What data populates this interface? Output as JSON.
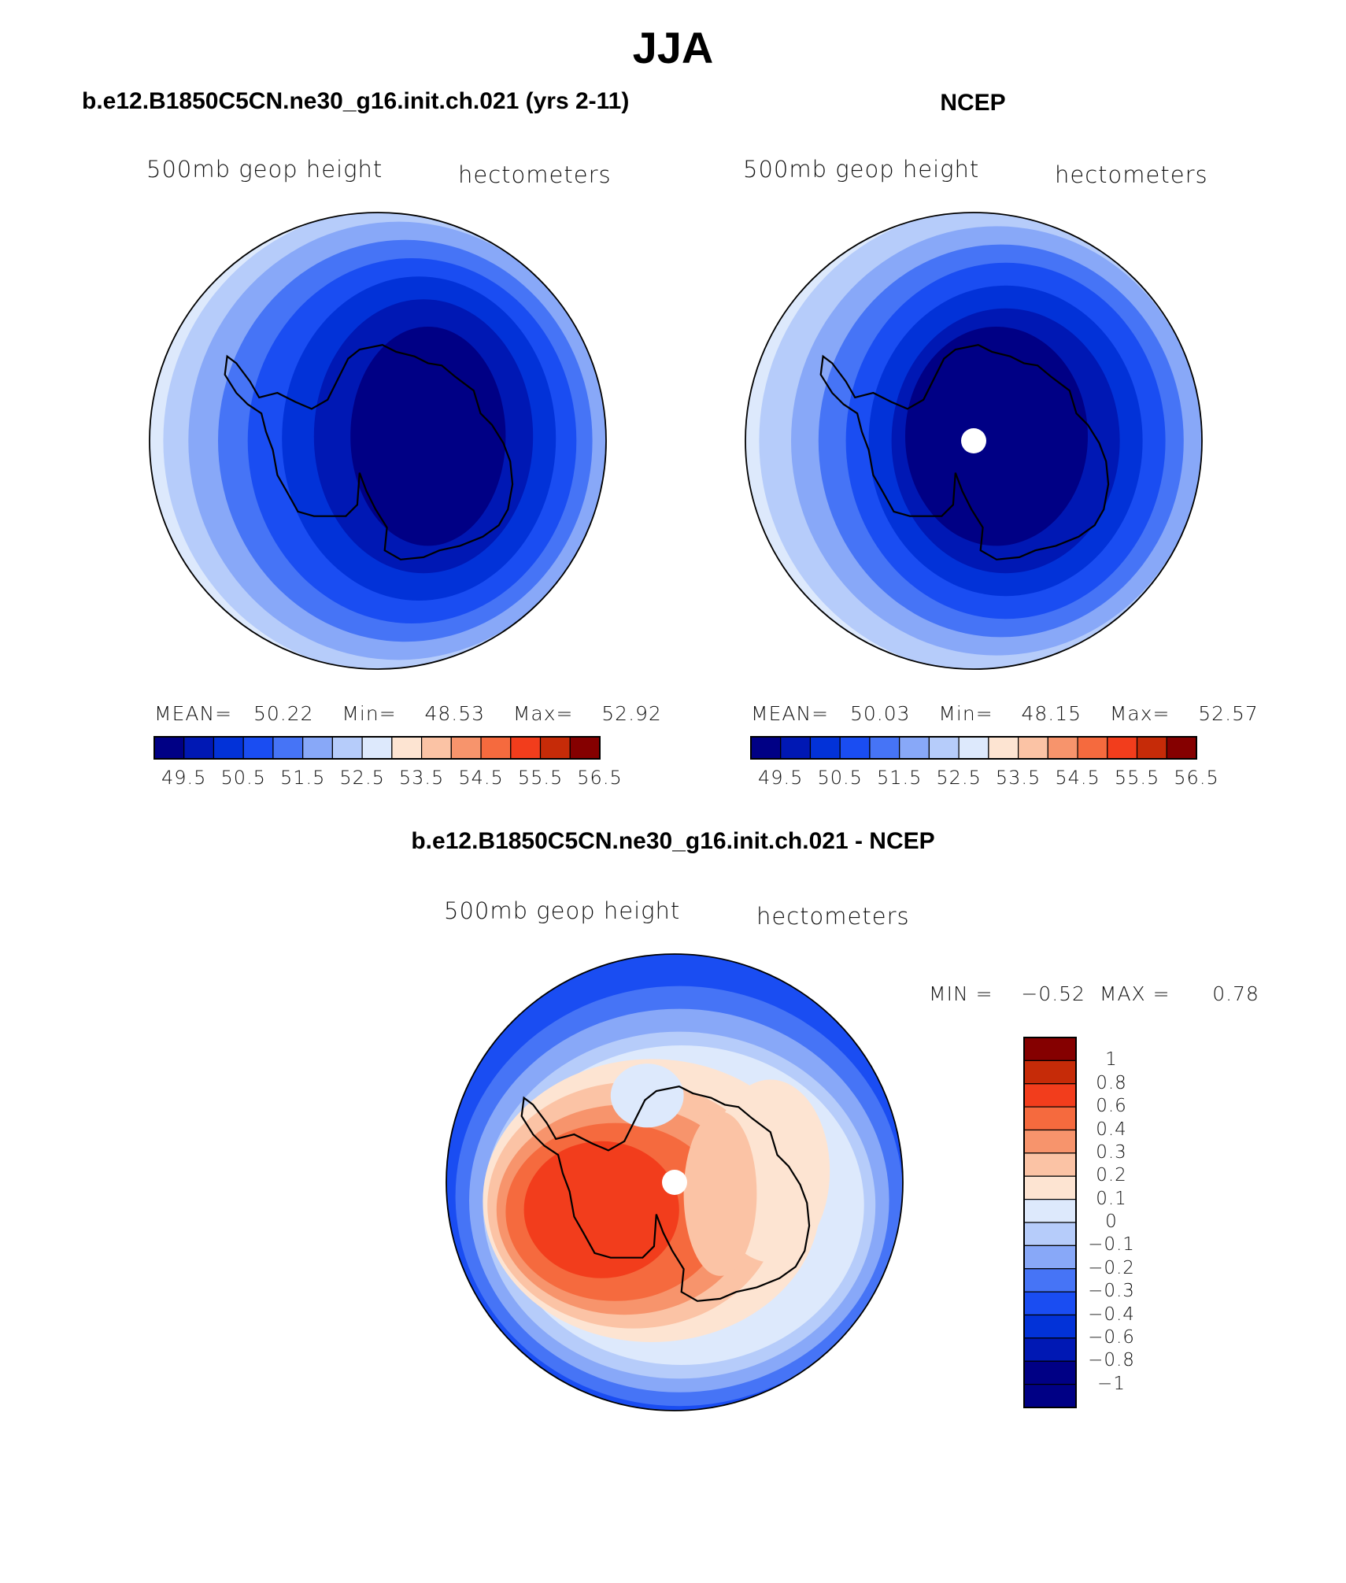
{
  "page": {
    "title": "JJA"
  },
  "palette": {
    "colors": [
      "#000085",
      "#0018b4",
      "#0232d8",
      "#1a4df2",
      "#4674f6",
      "#88a8f8",
      "#b6ccfa",
      "#dde9fc",
      "#fde4d2",
      "#fbc3a5",
      "#f7946c",
      "#f56a3e",
      "#f23d1c",
      "#c62b08",
      "#850000"
    ]
  },
  "panels": [
    {
      "title": "b.e12.B1850C5CN.ne30_g16.init.ch.021 (yrs 2-11)",
      "variable": "500mb geop height",
      "units": "hectometers",
      "stats": {
        "mean_label": "MEAN=",
        "mean": "50.22",
        "min_label": "Min=",
        "min": "48.53",
        "max_label": "Max=",
        "max": "52.92"
      }
    },
    {
      "title": "NCEP",
      "variable": "500mb geop height",
      "units": "hectometers",
      "stats": {
        "mean_label": "MEAN=",
        "mean": "50.03",
        "min_label": "Min=",
        "min": "48.15",
        "max_label": "Max=",
        "max": "52.57"
      }
    },
    {
      "title": "b.e12.B1850C5CN.ne30_g16.init.ch.021 - NCEP",
      "variable": "500mb geop height",
      "units": "hectometers",
      "stats": {
        "min_label": "MIN =",
        "min": "−0.52",
        "max_label": "MAX =",
        "max": "0.78"
      }
    }
  ],
  "chart_data": [
    {
      "type": "heatmap",
      "title": "b.e12.B1850C5CN.ne30_g16.init.ch.021 (yrs 2-11)",
      "field": "500mb geop height",
      "units": "hectometers",
      "projection": "south-polar stereographic",
      "colorbar_ticks": [
        "49.5",
        "50.5",
        "51.5",
        "52.5",
        "53.5",
        "54.5",
        "55.5",
        "56.5"
      ],
      "contour_levels": [
        49,
        49.5,
        50,
        50.5,
        51,
        51.5,
        52,
        52.5,
        53,
        53.5,
        54,
        54.5,
        55,
        55.5,
        56,
        56.5
      ],
      "mean": 50.22,
      "min": 48.53,
      "max": 52.92
    },
    {
      "type": "heatmap",
      "title": "NCEP",
      "field": "500mb geop height",
      "units": "hectometers",
      "projection": "south-polar stereographic",
      "colorbar_ticks": [
        "49.5",
        "50.5",
        "51.5",
        "52.5",
        "53.5",
        "54.5",
        "55.5",
        "56.5"
      ],
      "contour_levels": [
        49,
        49.5,
        50,
        50.5,
        51,
        51.5,
        52,
        52.5,
        53,
        53.5,
        54,
        54.5,
        55,
        55.5,
        56,
        56.5
      ],
      "mean": 50.03,
      "min": 48.15,
      "max": 52.57
    },
    {
      "type": "heatmap",
      "title": "b.e12.B1850C5CN.ne30_g16.init.ch.021 - NCEP",
      "field": "500mb geop height",
      "units": "hectometers",
      "projection": "south-polar stereographic",
      "colorbar_ticks": [
        "1",
        "0.8",
        "0.6",
        "0.4",
        "0.3",
        "0.2",
        "0.1",
        "0",
        "−0.1",
        "−0.2",
        "−0.3",
        "−0.4",
        "−0.6",
        "−0.8",
        "−1"
      ],
      "contour_levels": [
        -1,
        -0.8,
        -0.6,
        -0.4,
        -0.3,
        -0.2,
        -0.1,
        0,
        0.1,
        0.2,
        0.3,
        0.4,
        0.6,
        0.8,
        1
      ],
      "min": -0.52,
      "max": 0.78
    }
  ]
}
